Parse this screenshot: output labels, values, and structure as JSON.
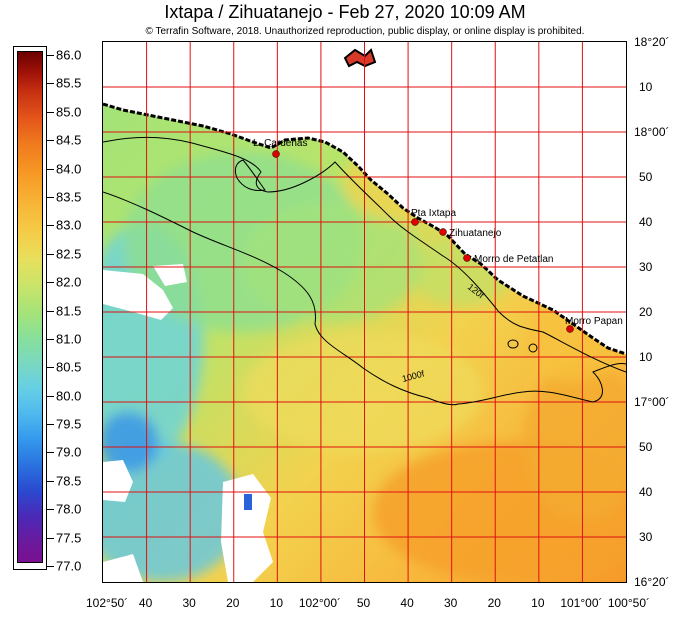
{
  "header": {
    "title": "Ixtapa / Zihuatanejo - Feb 27, 2020 10:09 AM",
    "copyright": "© Terrafin Software,  2018.  Unauthorized reproduction, public display, or online display is prohibited."
  },
  "color_scale": {
    "labels": [
      "86.0",
      "85.5",
      "85.0",
      "84.5",
      "84.0",
      "83.5",
      "83.0",
      "82.5",
      "82.0",
      "81.5",
      "81.0",
      "80.5",
      "80.0",
      "79.5",
      "79.0",
      "78.5",
      "78.0",
      "77.5",
      "77.0"
    ],
    "max": 86.0,
    "min": 77.0,
    "colors": [
      "#6b0000",
      "#c83212",
      "#f07a1e",
      "#f7b638",
      "#e6e05e",
      "#a6e378",
      "#7ad8c0",
      "#4fb8ee",
      "#2a72e0",
      "#4a2ab8",
      "#7a1090"
    ]
  },
  "latitude_labels": [
    "18°20´",
    "10",
    "18°00´",
    "50",
    "40",
    "30",
    "20",
    "10",
    "17°00´",
    "50",
    "40",
    "30",
    "16°20´"
  ],
  "longitude_labels": [
    "102°50´",
    "40",
    "30",
    "20",
    "10",
    "102°00´",
    "50",
    "40",
    "30",
    "20",
    "10",
    "101°00´",
    "100°50´"
  ],
  "places": [
    {
      "name": "L. Cardenas"
    },
    {
      "name": "Pta Ixtapa"
    },
    {
      "name": "Zihuatanejo"
    },
    {
      "name": "Morro de Petatlan"
    },
    {
      "name": "Morro Papan"
    }
  ],
  "contours": [
    {
      "label": "120f"
    },
    {
      "label": "1000f"
    }
  ],
  "colors": {
    "grid": "#e01010",
    "land": "#ffffff",
    "marker": "#e00000"
  }
}
